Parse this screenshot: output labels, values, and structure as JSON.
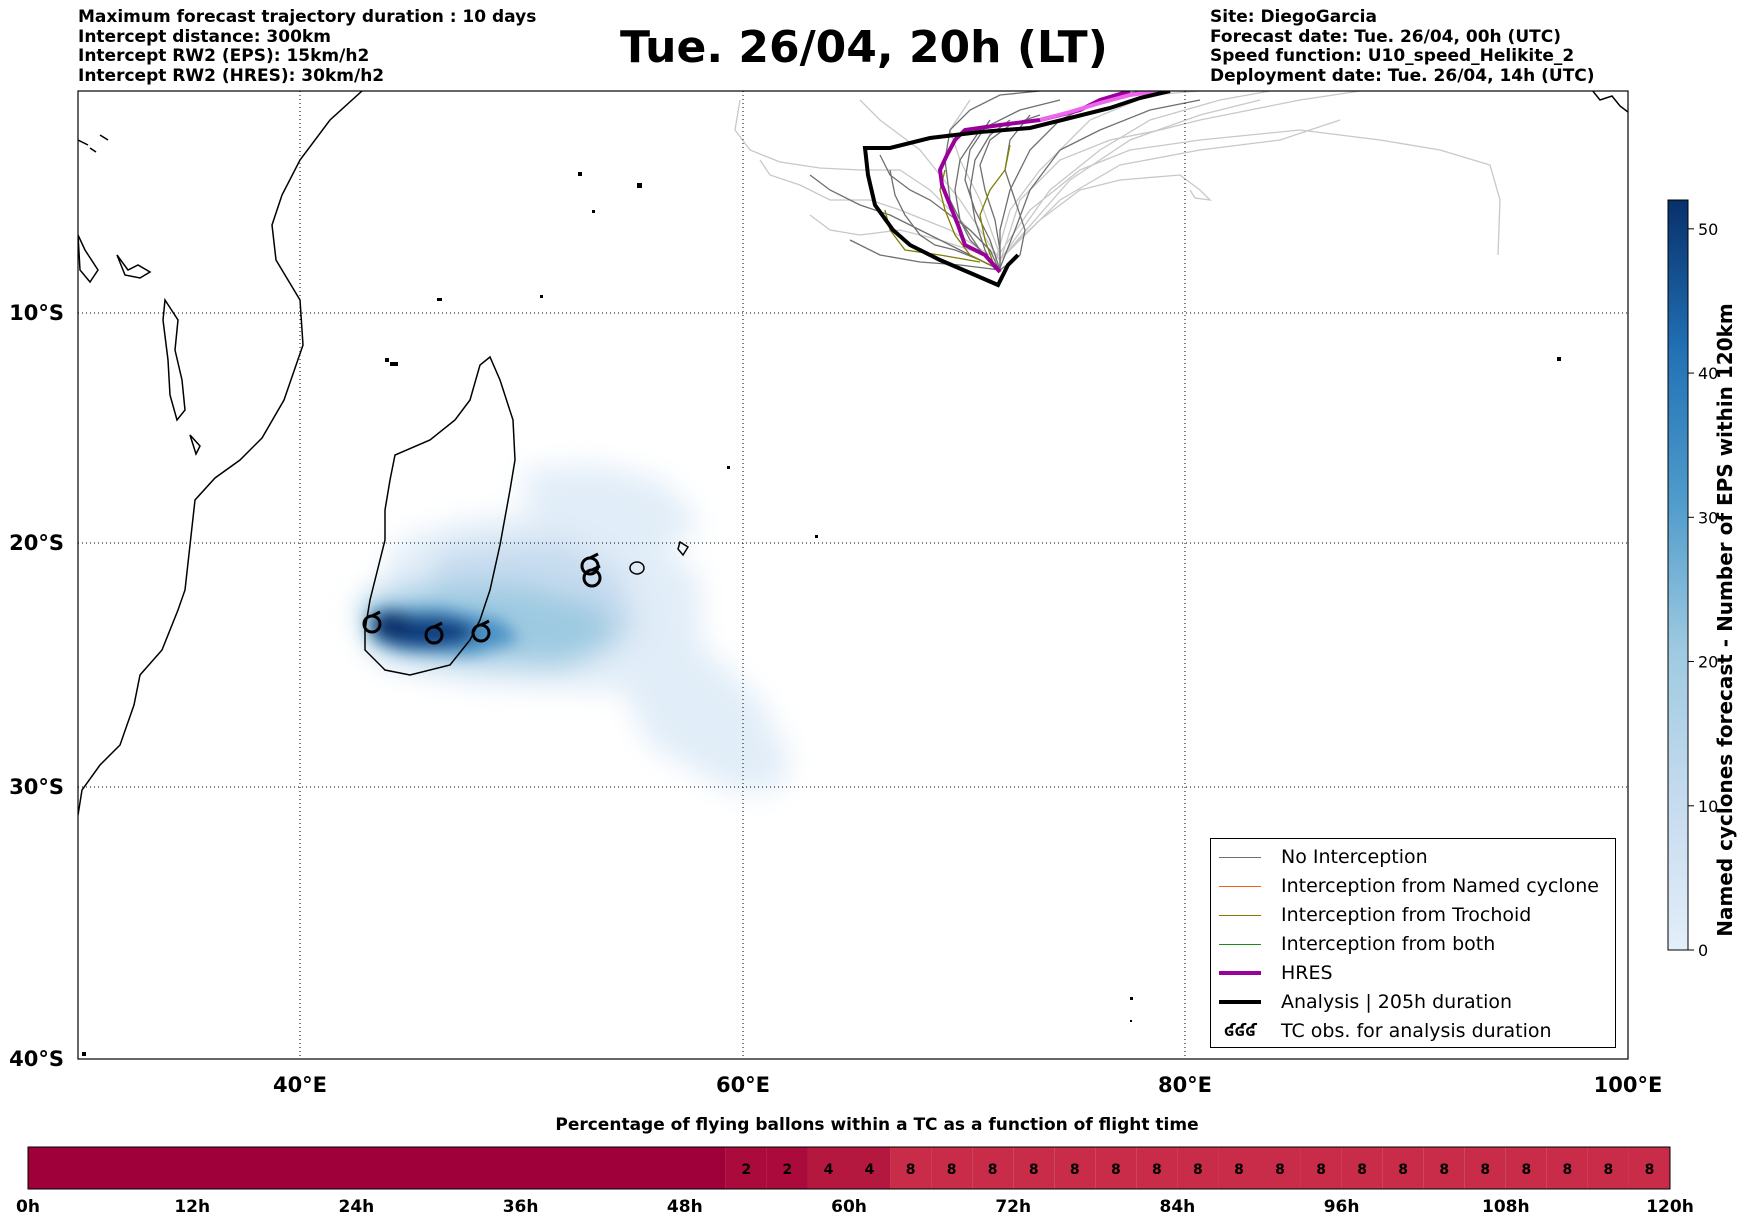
{
  "header": {
    "title": "Tue. 26/04, 20h (LT)",
    "left_info": [
      "Maximum forecast trajectory duration : 10 days",
      "Intercept distance: 300km",
      "Intercept RW2 (EPS):  15km/h2",
      "Intercept RW2 (HRES): 30km/h2"
    ],
    "right_info": [
      "Site: DiegoGarcia",
      "Forecast date: Tue. 26/04, 00h (UTC)",
      "Speed function: U10_speed_Helikite_2",
      "Deployment date: Tue. 26/04, 14h (UTC)"
    ]
  },
  "map": {
    "lon_labels": [
      "40°E",
      "60°E",
      "80°E",
      "100°E"
    ],
    "lat_labels": [
      "10°S",
      "20°S",
      "30°S",
      "40°S"
    ],
    "gridlines": true,
    "colors": {
      "no_interception": "#6f6f6f",
      "ensemble_light": "#c8c8c8",
      "named_cyclone": "#ff5a1e",
      "trochoid": "#7f7f00",
      "both": "#1a8a1a",
      "hres": "#9b009b",
      "hres_light": "#ee66ee",
      "analysis": "#000000"
    },
    "tc_obs": [
      "TC-1",
      "TC-2",
      "TC-3",
      "TC-4",
      "TC-5"
    ]
  },
  "legend": {
    "items": [
      {
        "label": "No Interception",
        "color": "#6f6f6f",
        "width": 1
      },
      {
        "label": "Interception from Named cyclone",
        "color": "#ff5a1e",
        "width": 1
      },
      {
        "label": "Interception from Trochoid",
        "color": "#7f7f00",
        "width": 1
      },
      {
        "label": "Interception from both",
        "color": "#1a8a1a",
        "width": 1
      },
      {
        "label": "HRES",
        "color": "#9b009b",
        "width": 4
      },
      {
        "label": "Analysis | 205h duration",
        "color": "#000000",
        "width": 4
      }
    ],
    "obs_label": "TC obs. for analysis duration",
    "obs_symbol": "ʛʛʛ"
  },
  "colorbar": {
    "title": "Named cyclones forecast - Number of EPS within 120km",
    "ticks": [
      "0",
      "10",
      "20",
      "30",
      "40",
      "50"
    ],
    "min": 0,
    "max": 52,
    "color_low": "#e3eef9",
    "color_high": "#08306b"
  },
  "strip": {
    "title": "Percentage of flying ballons within a TC as a function of flight time",
    "tick_labels": [
      "0h",
      "12h",
      "24h",
      "36h",
      "48h",
      "60h",
      "72h",
      "84h",
      "96h",
      "108h",
      "120h"
    ],
    "cells": [
      {
        "from": 0,
        "to": 51,
        "value": "",
        "color": "#a0003a"
      },
      {
        "from": 51,
        "to": 54,
        "value": "2",
        "color": "#ab0a3c"
      },
      {
        "from": 54,
        "to": 57,
        "value": "2",
        "color": "#ab0a3c"
      },
      {
        "from": 57,
        "to": 60,
        "value": "4",
        "color": "#b4183f"
      },
      {
        "from": 60,
        "to": 63,
        "value": "4",
        "color": "#b4183f"
      },
      {
        "from": 63,
        "to": 66,
        "value": "8",
        "color": "#c82c48"
      },
      {
        "from": 66,
        "to": 69,
        "value": "8",
        "color": "#c82c48"
      },
      {
        "from": 69,
        "to": 72,
        "value": "8",
        "color": "#c82c48"
      },
      {
        "from": 72,
        "to": 75,
        "value": "8",
        "color": "#c82c48"
      },
      {
        "from": 75,
        "to": 78,
        "value": "8",
        "color": "#c82c48"
      },
      {
        "from": 78,
        "to": 81,
        "value": "8",
        "color": "#c82c48"
      },
      {
        "from": 81,
        "to": 84,
        "value": "8",
        "color": "#c82c48"
      },
      {
        "from": 84,
        "to": 87,
        "value": "8",
        "color": "#c82c48"
      },
      {
        "from": 87,
        "to": 90,
        "value": "8",
        "color": "#c82c48"
      },
      {
        "from": 90,
        "to": 93,
        "value": "8",
        "color": "#c82c48"
      },
      {
        "from": 93,
        "to": 96,
        "value": "8",
        "color": "#c82c48"
      },
      {
        "from": 96,
        "to": 99,
        "value": "8",
        "color": "#c82c48"
      },
      {
        "from": 99,
        "to": 102,
        "value": "8",
        "color": "#c82c48"
      },
      {
        "from": 102,
        "to": 105,
        "value": "8",
        "color": "#c82c48"
      },
      {
        "from": 105,
        "to": 108,
        "value": "8",
        "color": "#c82c48"
      },
      {
        "from": 108,
        "to": 111,
        "value": "8",
        "color": "#c82c48"
      },
      {
        "from": 111,
        "to": 114,
        "value": "8",
        "color": "#c82c48"
      },
      {
        "from": 114,
        "to": 117,
        "value": "8",
        "color": "#c82c48"
      },
      {
        "from": 117,
        "to": 120,
        "value": "8",
        "color": "#c82c48"
      }
    ]
  }
}
